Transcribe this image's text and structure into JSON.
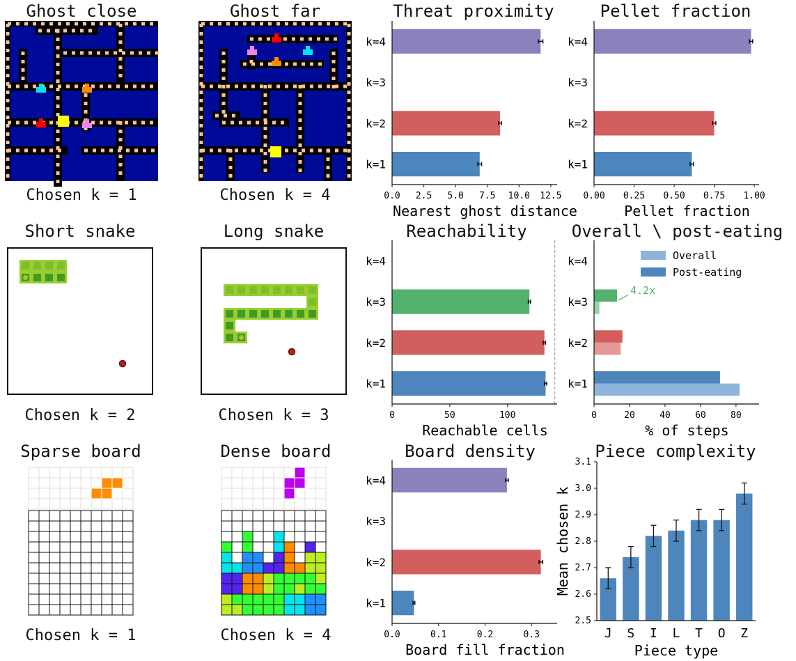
{
  "panels": {
    "ghost_close": {
      "title": "Ghost close",
      "caption": "Chosen k = 1"
    },
    "ghost_far": {
      "title": "Ghost far",
      "caption": "Chosen k = 4"
    },
    "short_snake": {
      "title": "Short snake",
      "caption": "Chosen k = 2"
    },
    "long_snake": {
      "title": "Long snake",
      "caption": "Chosen k = 3"
    },
    "sparse_board": {
      "title": "Sparse board",
      "caption": "Chosen k = 1"
    },
    "dense_board": {
      "title": "Dense board",
      "caption": "Chosen k = 4"
    }
  },
  "colors": {
    "k1": "#4c86bd",
    "k2": "#d35e5e",
    "k3": "#52b26c",
    "k4": "#8b81bd",
    "overall": "#8fb4d9",
    "post_eating": "#4c86bd",
    "pacman_wall": "#000a99",
    "pacman_path": "#000000",
    "pellet": "#f4c397",
    "snake_light": "#9acd32",
    "snake_dark": "#3f9c20",
    "food": "#b22222"
  },
  "chart_data": [
    {
      "id": "threat",
      "type": "bar",
      "orientation": "horizontal",
      "title": "Threat proximity",
      "xlabel": "Nearest ghost distance",
      "categories": [
        "k=1",
        "k=2",
        "k=3",
        "k=4"
      ],
      "values": [
        6.9,
        8.5,
        null,
        11.7
      ],
      "errors": [
        0.15,
        0.12,
        null,
        0.18
      ],
      "xlim": [
        0,
        13
      ],
      "xticks": [
        0.0,
        2.5,
        5.0,
        7.5,
        10.0,
        12.5
      ],
      "xtick_labels": [
        "0.0",
        "2.5",
        "5.0",
        "7.5",
        "10.0",
        "12.5"
      ]
    },
    {
      "id": "pellet",
      "type": "bar",
      "orientation": "horizontal",
      "title": "Pellet fraction",
      "xlabel": "Pellet fraction",
      "categories": [
        "k=1",
        "k=2",
        "k=3",
        "k=4"
      ],
      "values": [
        0.61,
        0.75,
        null,
        0.98
      ],
      "errors": [
        0.01,
        0.01,
        null,
        0.01
      ],
      "xlim": [
        0,
        1.03
      ],
      "xticks": [
        0.0,
        0.25,
        0.5,
        0.75,
        1.0
      ],
      "xtick_labels": [
        "0.00",
        "0.25",
        "0.50",
        "0.75",
        "1.00"
      ]
    },
    {
      "id": "reach",
      "type": "bar",
      "orientation": "horizontal",
      "title": "Reachability",
      "xlabel": "Reachable cells",
      "categories": [
        "k=1",
        "k=2",
        "k=3",
        "k=4"
      ],
      "values": [
        133,
        132,
        119,
        null
      ],
      "errors": [
        1,
        1,
        1,
        null
      ],
      "xlim": [
        0,
        143
      ],
      "xticks": [
        0,
        50,
        100
      ],
      "xtick_labels": [
        "0",
        "50",
        "100"
      ],
      "ref_line": 141
    },
    {
      "id": "overall",
      "type": "bar",
      "orientation": "horizontal",
      "title": "Overall \\ post-eating",
      "xlabel": "% of steps",
      "categories": [
        "k=1",
        "k=2",
        "k=3",
        "k=4"
      ],
      "series": [
        {
          "name": "Overall",
          "values": [
            82,
            15,
            3,
            0
          ]
        },
        {
          "name": "Post-eating",
          "values": [
            71,
            16,
            13,
            0
          ]
        }
      ],
      "xlim": [
        0,
        93
      ],
      "xticks": [
        0,
        20,
        40,
        60,
        80
      ],
      "xtick_labels": [
        "0",
        "20",
        "40",
        "60",
        "80"
      ],
      "annotation": "4.2x",
      "legend": "top-right"
    },
    {
      "id": "density",
      "type": "bar",
      "orientation": "horizontal",
      "title": "Board density",
      "xlabel": "Board fill fraction",
      "categories": [
        "k=1",
        "k=2",
        "k=3",
        "k=4"
      ],
      "values": [
        0.047,
        0.32,
        null,
        0.247
      ],
      "errors": [
        0.002,
        0.004,
        null,
        0.003
      ],
      "xlim": [
        0,
        0.355
      ],
      "xticks": [
        0.0,
        0.1,
        0.2,
        0.3
      ],
      "xtick_labels": [
        "0.0",
        "0.1",
        "0.2",
        "0.3"
      ]
    },
    {
      "id": "piece",
      "type": "bar",
      "orientation": "vertical",
      "title": "Piece complexity",
      "xlabel": "Piece type",
      "ylabel": "Mean chosen k",
      "categories": [
        "J",
        "S",
        "I",
        "L",
        "T",
        "O",
        "Z"
      ],
      "values": [
        2.66,
        2.74,
        2.82,
        2.84,
        2.88,
        2.88,
        2.98
      ],
      "errors": [
        0.04,
        0.04,
        0.04,
        0.04,
        0.04,
        0.04,
        0.04
      ],
      "ylim": [
        2.5,
        3.1
      ],
      "yticks": [
        2.5,
        2.6,
        2.7,
        2.8,
        2.9,
        3.0,
        3.1
      ],
      "ytick_labels": [
        "2.5",
        "2.6",
        "2.7",
        "2.8",
        "2.9",
        "3.0",
        "3.1"
      ]
    }
  ]
}
